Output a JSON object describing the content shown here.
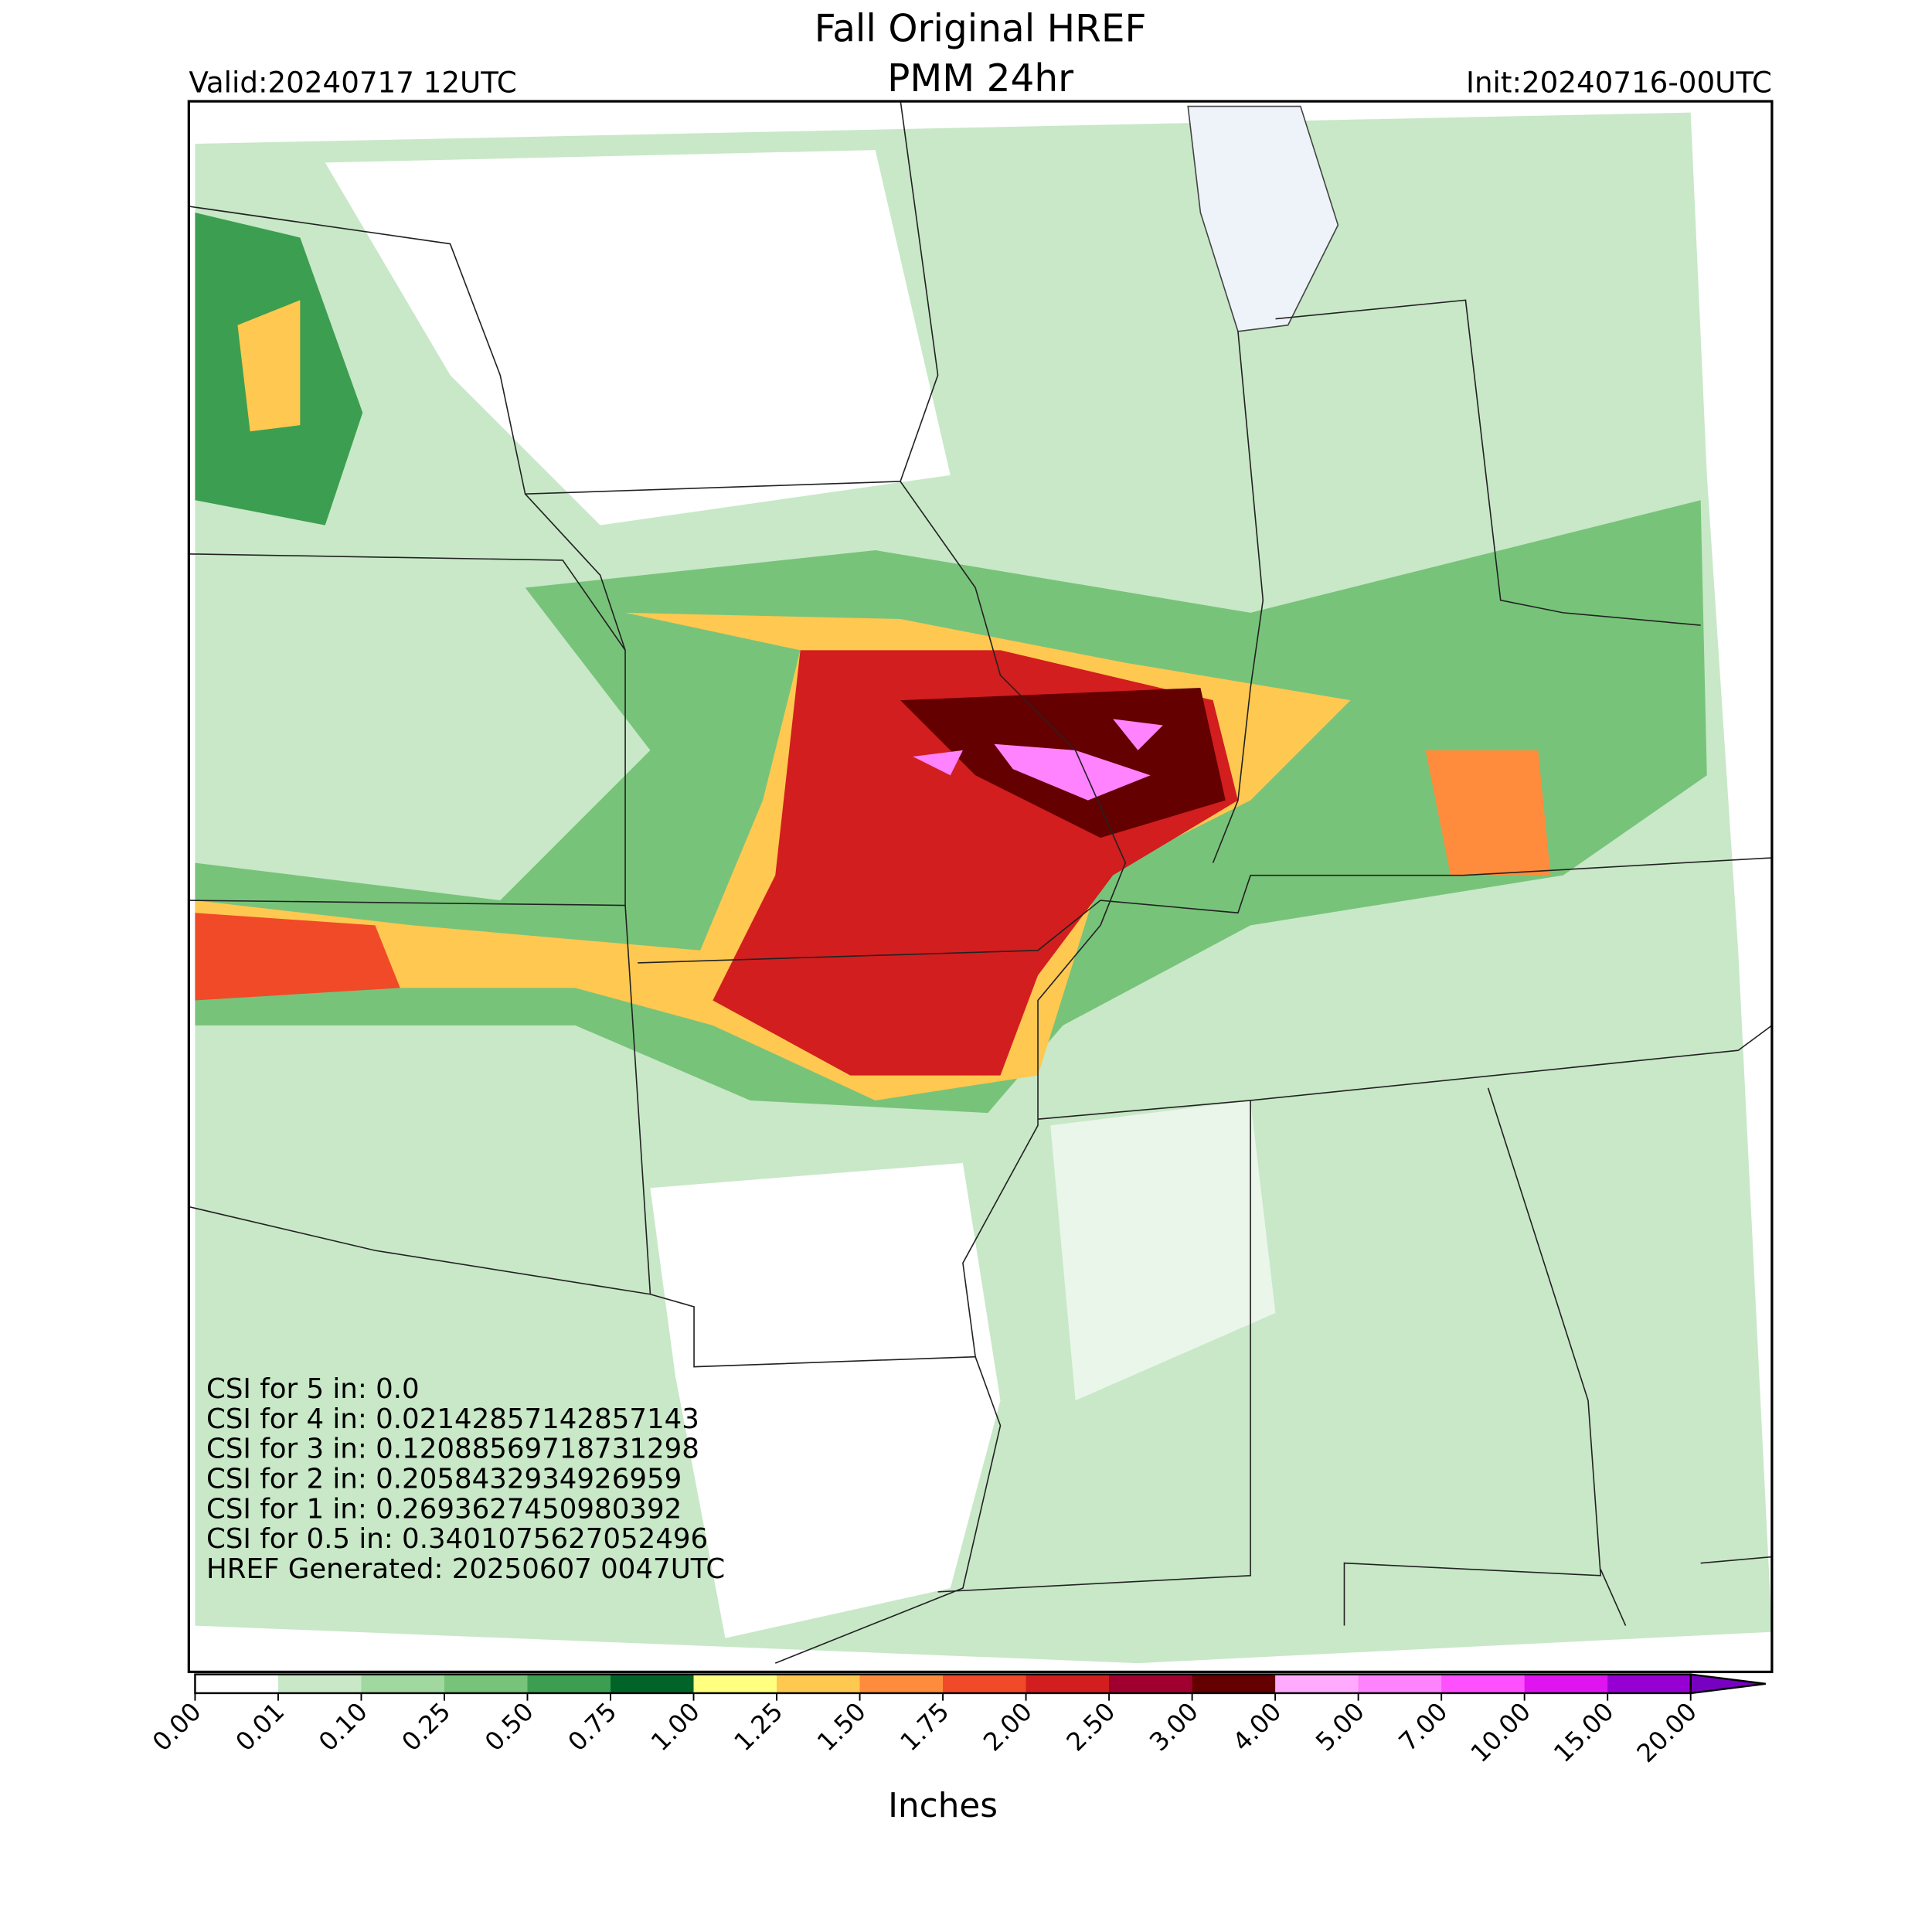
{
  "header": {
    "title": "Fall Original HREF",
    "subtitle": "PMM 24hr",
    "valid": "Valid:20240717 12UTC",
    "init": "Init:20240716-00UTC"
  },
  "stats": [
    "CSI for 5 in: 0.0",
    "CSI for 4 in: 0.02142857142857143",
    "CSI for 3 in: 0.12088569718731298",
    "CSI for 2 in: 0.2058432934926959",
    "CSI for 1 in: 0.2693627450980392",
    "CSI for 0.5 in: 0.3401075627052496",
    "HREF Generated: 20250607 0047UTC"
  ],
  "colorbar": {
    "label": "Inches",
    "ticks": [
      {
        "value": 0,
        "label": "0.00"
      },
      {
        "value": 0.01,
        "label": "0.01"
      },
      {
        "value": 0.1,
        "label": "0.10"
      },
      {
        "value": 0.25,
        "label": "0.25"
      },
      {
        "value": 0.5,
        "label": "0.50"
      },
      {
        "value": 0.75,
        "label": "0.75"
      },
      {
        "value": 1,
        "label": "1.00"
      },
      {
        "value": 1.25,
        "label": "1.25"
      },
      {
        "value": 1.5,
        "label": "1.50"
      },
      {
        "value": 1.75,
        "label": "1.75"
      },
      {
        "value": 2,
        "label": "2.00"
      },
      {
        "value": 2.5,
        "label": "2.50"
      },
      {
        "value": 3,
        "label": "3.00"
      },
      {
        "value": 4,
        "label": "4.00"
      },
      {
        "value": 5,
        "label": "5.00"
      },
      {
        "value": 7,
        "label": "7.00"
      },
      {
        "value": 10,
        "label": "10.00"
      },
      {
        "value": 15,
        "label": "15.00"
      },
      {
        "value": 20,
        "label": "20.00"
      }
    ],
    "colors": [
      "#ffffff",
      "#c8e8c8",
      "#a0d8a0",
      "#78c37a",
      "#3c9e50",
      "#006428",
      "#ffff80",
      "#ffc850",
      "#ff8c3c",
      "#f04a28",
      "#d21e1e",
      "#a00030",
      "#640000",
      "#ffaaff",
      "#ff82ff",
      "#ff50ff",
      "#e014f0",
      "#9600d2"
    ],
    "extend_color": "#7800c0"
  }
}
